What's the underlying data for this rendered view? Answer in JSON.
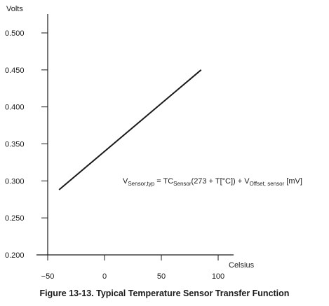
{
  "chart_data": {
    "type": "line",
    "title": "",
    "xlabel": "Celsius",
    "ylabel": "Volts",
    "xlim": [
      -55,
      115
    ],
    "ylim": [
      0.2,
      0.52
    ],
    "x_ticks": [
      -50,
      0,
      50,
      100
    ],
    "x_tick_labels": [
      "−50",
      "0",
      "50",
      "100"
    ],
    "y_ticks": [
      0.2,
      0.25,
      0.3,
      0.35,
      0.4,
      0.45,
      0.5
    ],
    "y_tick_labels": [
      "0.200",
      "0.250",
      "0.300",
      "0.350",
      "0.400",
      "0.450",
      "0.500"
    ],
    "grid": false,
    "legend": "none",
    "series": [
      {
        "x": [
          -40,
          85
        ],
        "y": [
          0.288,
          0.45
        ]
      }
    ],
    "annotation": {
      "parts": [
        {
          "text": "V",
          "sub": false
        },
        {
          "text": "Sensor,typ",
          "sub": true
        },
        {
          "text": " = TC",
          "sub": false
        },
        {
          "text": "Sensor",
          "sub": true
        },
        {
          "text": "(273 + T[°C]) + V",
          "sub": false
        },
        {
          "text": "Offset, sensor",
          "sub": true
        },
        {
          "text": " [mV]",
          "sub": false
        }
      ]
    },
    "line_color": "#1a1a1a"
  },
  "caption": "Figure 13-13. Typical Temperature Sensor Transfer Function"
}
